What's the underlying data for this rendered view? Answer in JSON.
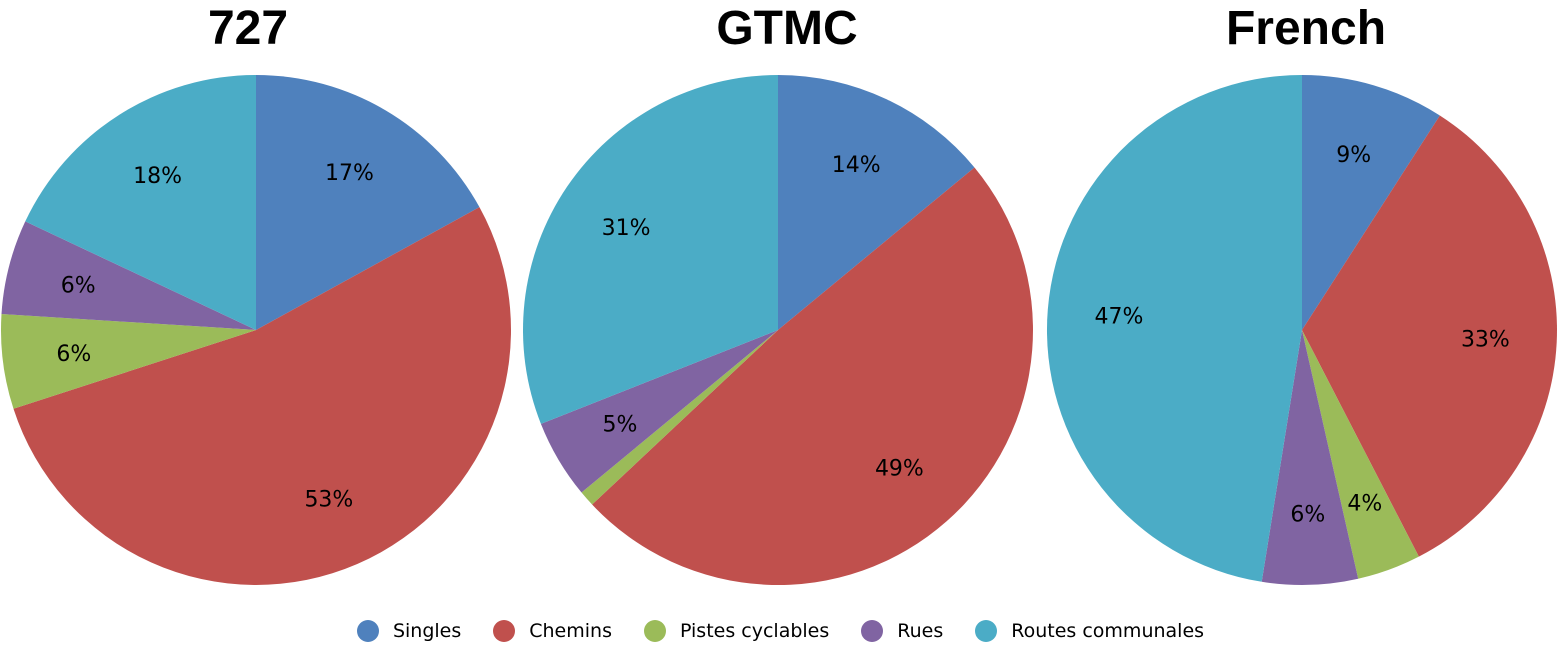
{
  "colors": {
    "Singles": "#4f81bd",
    "Chemins": "#c0504d",
    "Pistes cyclables": "#9bbb59",
    "Rues": "#8064a2",
    "Routes communales": "#4bacc6"
  },
  "legend": [
    "Singles",
    "Chemins",
    "Pistes cyclables",
    "Rues",
    "Routes communales"
  ],
  "chart_data": [
    {
      "type": "pie",
      "title": "727",
      "slices": [
        {
          "name": "Singles",
          "value": 17,
          "label": "17%"
        },
        {
          "name": "Chemins",
          "value": 53,
          "label": "53%"
        },
        {
          "name": "Pistes cyclables",
          "value": 6,
          "label": "6%"
        },
        {
          "name": "Rues",
          "value": 6,
          "label": "6%"
        },
        {
          "name": "Routes communales",
          "value": 18,
          "label": "18%"
        }
      ]
    },
    {
      "type": "pie",
      "title": "GTMC",
      "slices": [
        {
          "name": "Singles",
          "value": 14,
          "label": "14%"
        },
        {
          "name": "Chemins",
          "value": 49,
          "label": "49%"
        },
        {
          "name": "Pistes cyclables",
          "value": 1,
          "label": ""
        },
        {
          "name": "Rues",
          "value": 5,
          "label": "5%"
        },
        {
          "name": "Routes communales",
          "value": 31,
          "label": "31%"
        }
      ]
    },
    {
      "type": "pie",
      "title": "French",
      "slices": [
        {
          "name": "Singles",
          "value": 9,
          "label": "9%"
        },
        {
          "name": "Chemins",
          "value": 33,
          "label": "33%"
        },
        {
          "name": "Pistes cyclables",
          "value": 4,
          "label": "4%"
        },
        {
          "name": "Rues",
          "value": 6,
          "label": "6%"
        },
        {
          "name": "Routes communales",
          "value": 47,
          "label": "47%"
        }
      ]
    }
  ]
}
